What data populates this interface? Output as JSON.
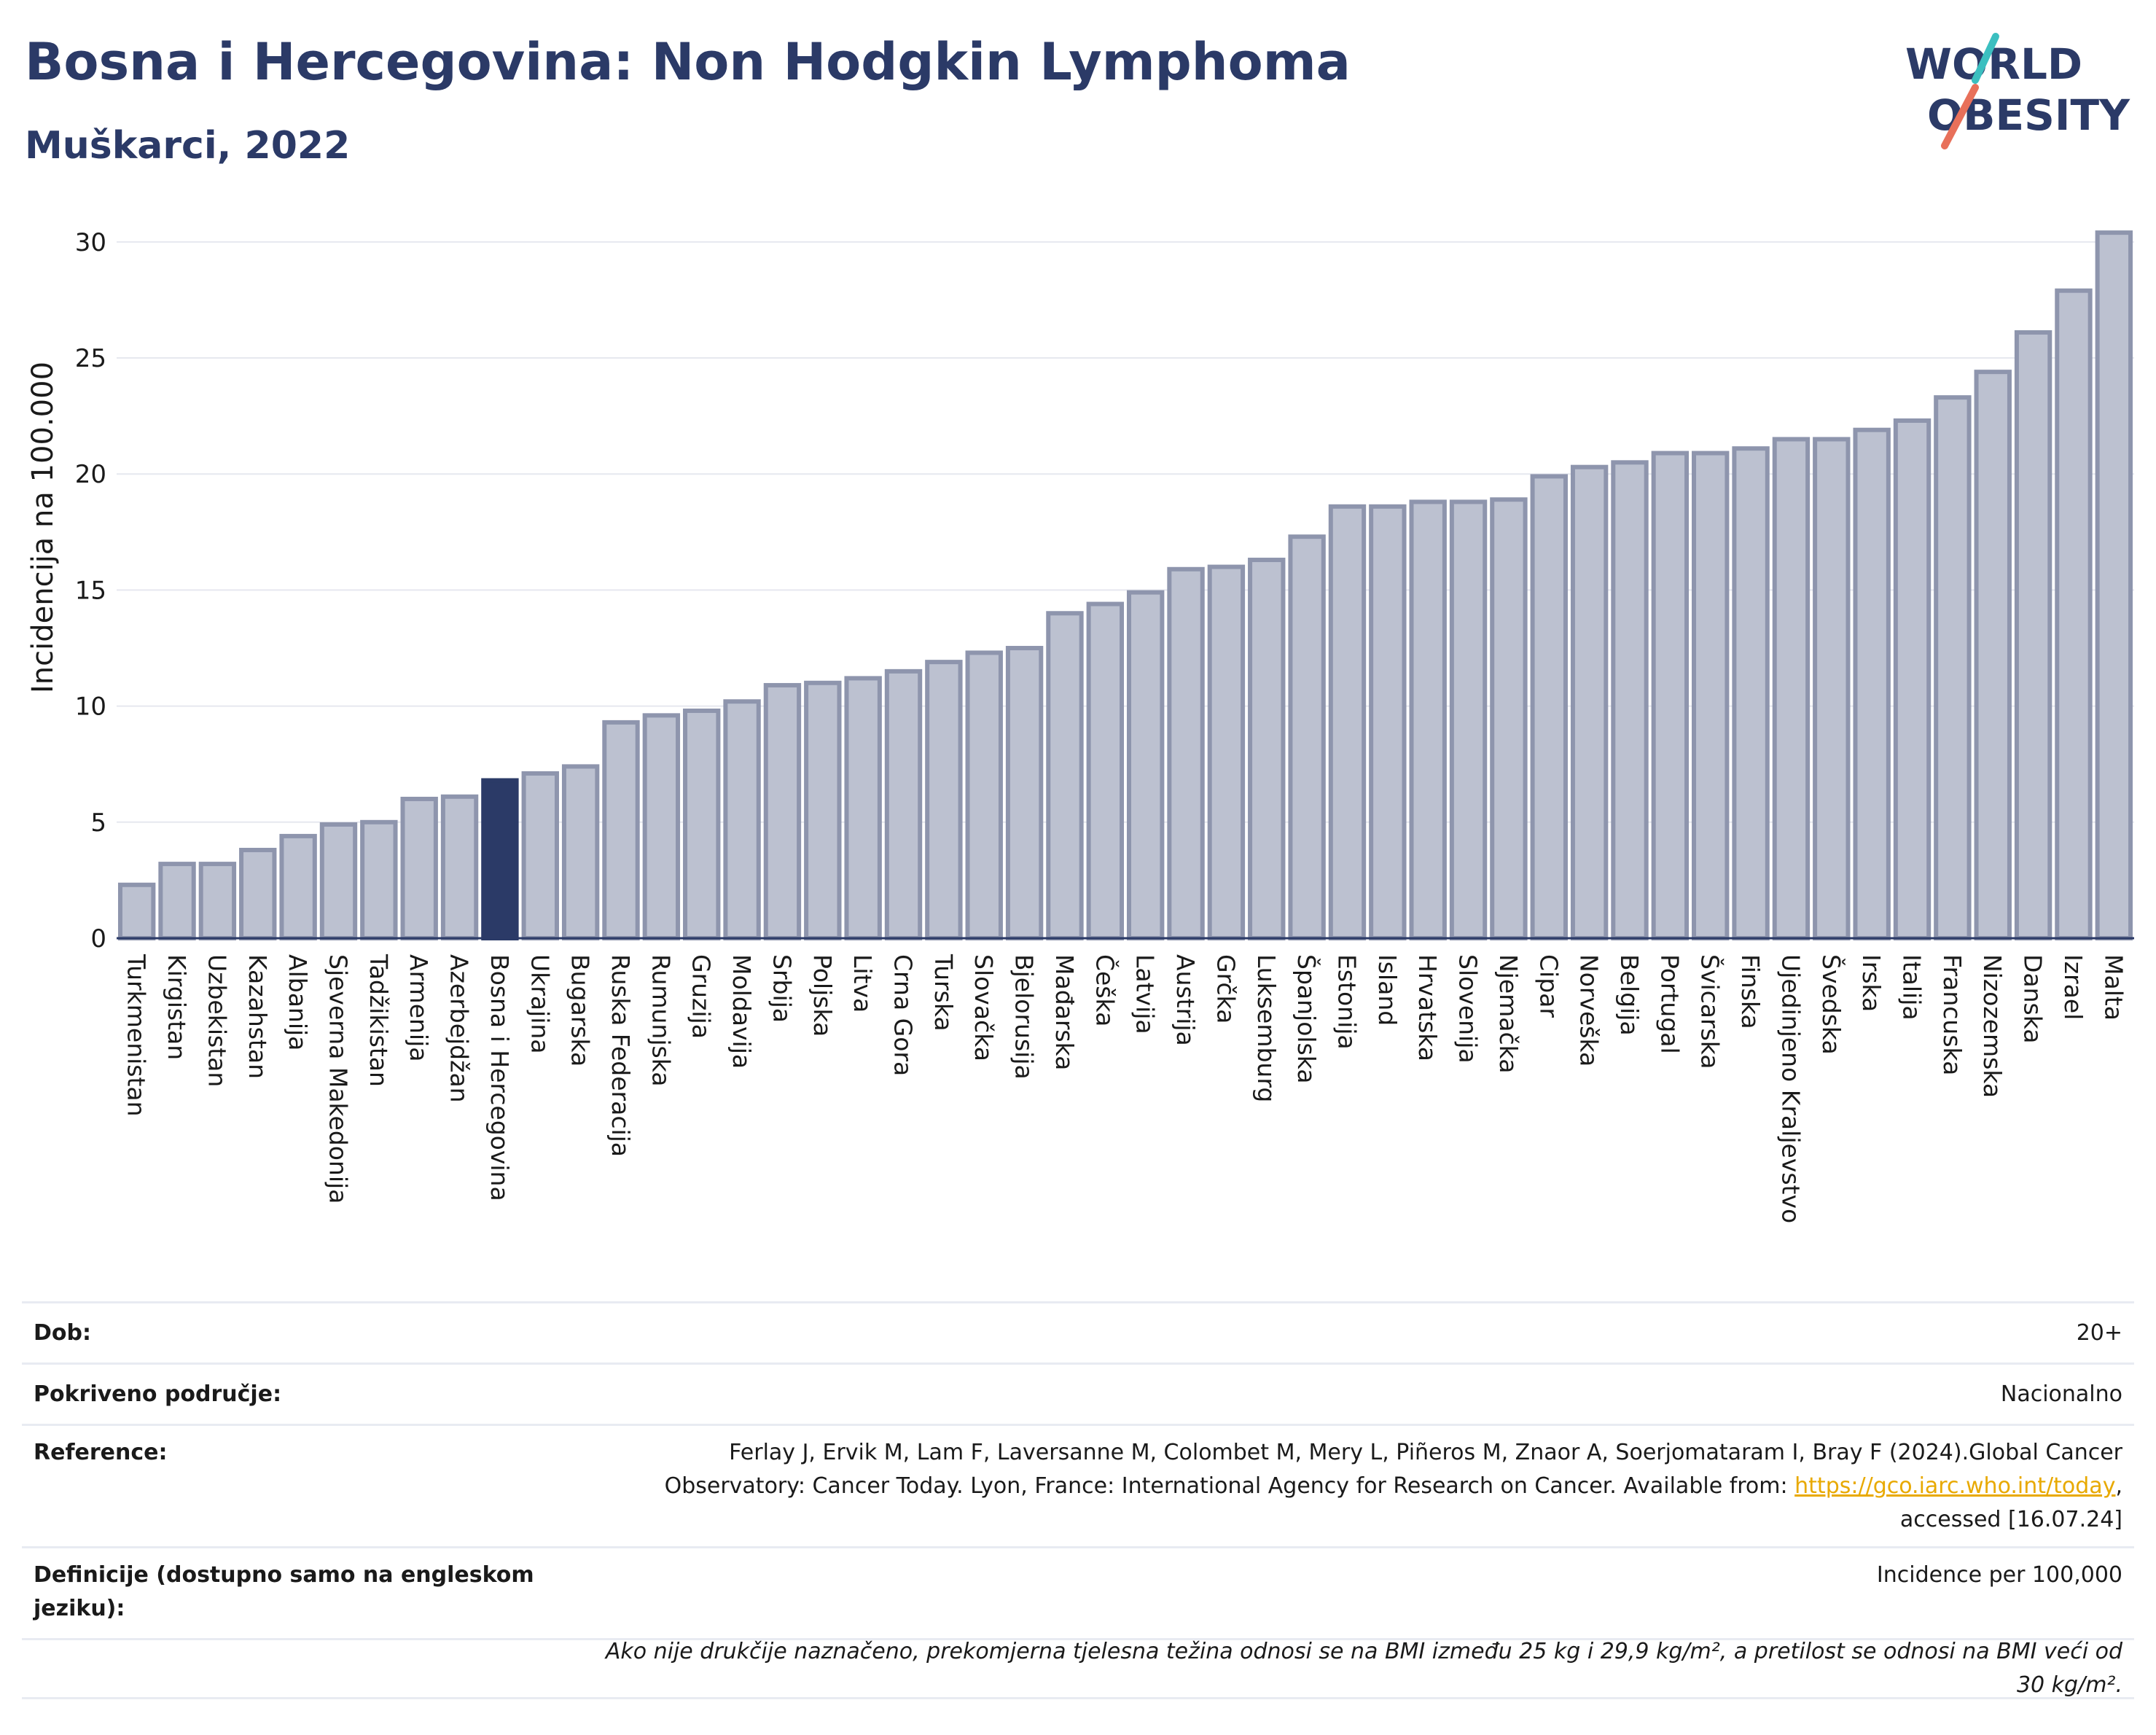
{
  "header": {
    "title": "Bosna i Hercegovina: Non Hodgkin Lymphoma",
    "subtitle": "Muškarci, 2022",
    "logo_line1": "WORLD",
    "logo_line2": "OBESITY"
  },
  "colors": {
    "highlight": "#2b3a67",
    "bar": "#bcc1d0",
    "bar_stroke": "#8e95ad",
    "logo_teal": "#3bbfc0",
    "logo_coral": "#e8705a",
    "link": "#e8a900"
  },
  "chart_data": {
    "type": "bar",
    "title": "",
    "xlabel": "",
    "ylabel": "Incidencija na 100.000",
    "ylim": [
      0,
      31
    ],
    "yticks": [
      0,
      5,
      10,
      15,
      20,
      25,
      30
    ],
    "grid": true,
    "highlight_category": "Bosna i Hercegovina",
    "categories": [
      "Turkmenistan",
      "Kirgistan",
      "Uzbekistan",
      "Kazahstan",
      "Albanija",
      "Sjeverna Makedonija",
      "Tadžikistan",
      "Armenija",
      "Azerbejdžan",
      "Bosna i Hercegovina",
      "Ukrajina",
      "Bugarska",
      "Ruska Federacija",
      "Rumunjska",
      "Gruzija",
      "Moldavija",
      "Srbija",
      "Poljska",
      "Litva",
      "Crna Gora",
      "Turska",
      "Slovačka",
      "Bjelorusija",
      "Mađarska",
      "Češka",
      "Latvija",
      "Austrija",
      "Grčka",
      "Luksemburg",
      "Španjolska",
      "Estonija",
      "Island",
      "Hrvatska",
      "Slovenija",
      "Njemačka",
      "Cipar",
      "Norveška",
      "Belgija",
      "Portugal",
      "Švicarska",
      "Finska",
      "Ujedinjeno Kraljevstvo",
      "Švedska",
      "Irska",
      "Italija",
      "Francuska",
      "Nizozemska",
      "Danska",
      "Izrael",
      "Malta"
    ],
    "values": [
      2.3,
      3.2,
      3.2,
      3.8,
      4.4,
      4.9,
      5.0,
      6.0,
      6.1,
      6.8,
      7.1,
      7.4,
      9.3,
      9.6,
      9.8,
      10.2,
      10.9,
      11.0,
      11.2,
      11.5,
      11.9,
      12.3,
      12.5,
      14.0,
      14.4,
      14.9,
      15.9,
      16.0,
      16.3,
      17.3,
      18.6,
      18.6,
      18.8,
      18.8,
      18.9,
      19.9,
      20.3,
      20.5,
      20.9,
      20.9,
      21.1,
      21.5,
      21.5,
      21.9,
      22.3,
      23.3,
      24.4,
      26.1,
      27.9,
      30.4
    ]
  },
  "meta": {
    "age_label": "Dob:",
    "age_value": "20+",
    "coverage_label": "Pokriveno područje:",
    "coverage_value": "Nacionalno",
    "reference_label": "Reference:",
    "reference_text_1": "Ferlay J, Ervik M, Lam F, Laversanne M, Colombet M, Mery L, Piñeros M, Znaor A, Soerjomataram I, Bray F (2024).Global Cancer",
    "reference_text_2": "Observatory: Cancer Today. Lyon, France: International Agency for Research on Cancer. Available from: ",
    "reference_link": "https://gco.iarc.who.int/today",
    "reference_text_3": ",",
    "reference_text_4": "accessed [16.07.24]",
    "definitions_label": "Definicije (dostupno samo na engleskom jeziku):",
    "definitions_value": "Incidence per 100,000",
    "note": "Ako nije drukčije naznačeno, prekomjerna tjelesna težina odnosi se na BMI između 25 kg i 29,9 kg/m², a pretilost se odnosi na BMI veći od 30 kg/m²."
  }
}
